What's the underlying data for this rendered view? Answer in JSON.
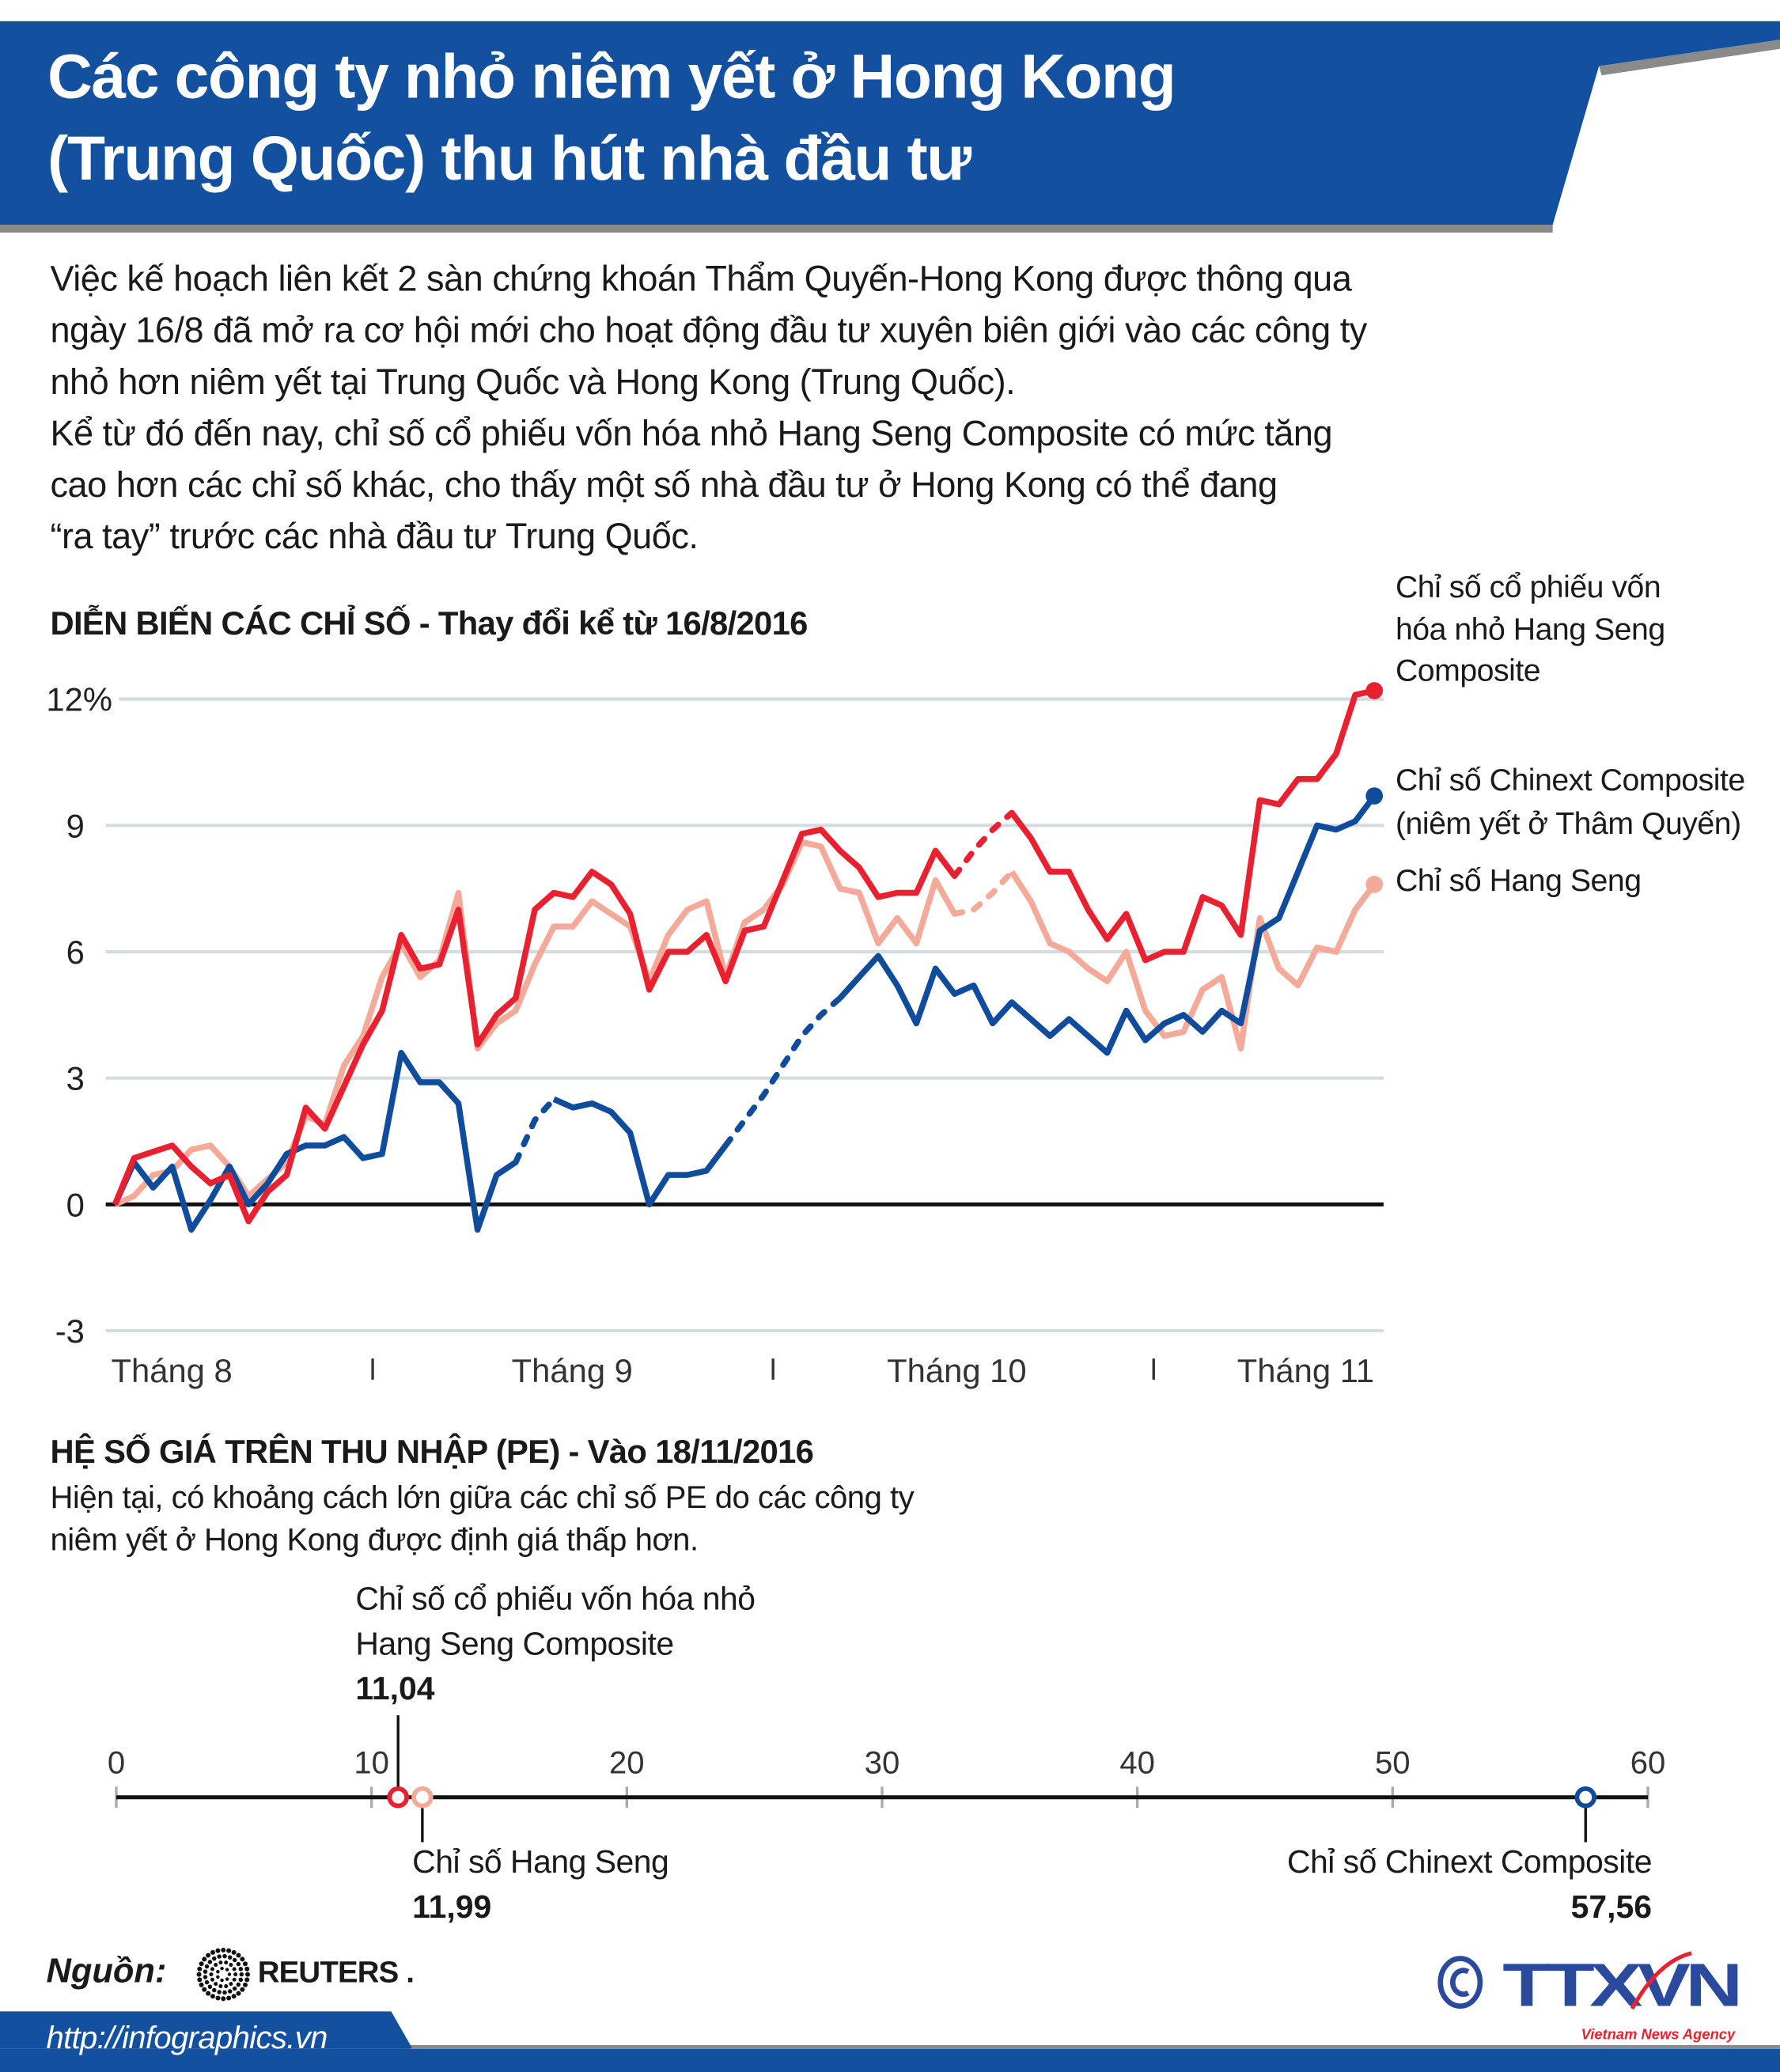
{
  "header": {
    "title_lines": [
      "Các công ty nhỏ niêm yết ở Hong Kong",
      "(Trung Quốc) thu hút nhà đầu tư"
    ]
  },
  "intro": {
    "lines": [
      "Việc  kế hoạch liên kết  2 sàn chứng khoán Thẩm Quyến-Hong Kong được thông qua",
      "ngày 16/8 đã mở ra cơ hội mới cho hoạt động đầu tư xuyên biên giới vào các công ty",
      "nhỏ hơn niêm yết tại Trung Quốc và Hong Kong (Trung Quốc).",
      "Kể từ đó đến nay, chỉ số cổ phiếu vốn hóa nhỏ Hang Seng Composite có mức tăng",
      "cao hơn các chỉ số khác, cho thấy một số nhà đầu tư ở Hong Kong có thể đang",
      "“ra tay” trước các nhà đầu tư Trung Quốc."
    ]
  },
  "colors": {
    "brand_blue": "#1351a0",
    "small_cap_red": "#e8202f",
    "chinext_blue": "#0f4c9c",
    "hang_seng_pink": "#f4a999",
    "grid": "#d3dcdf"
  },
  "chart_data": [
    {
      "type": "line",
      "title": "DIỄN BIẾN CÁC CHỈ SỐ - Thay đổi kể từ 16/8/2016",
      "xlabel": "",
      "ylabel": "",
      "ylim": [
        -3,
        12
      ],
      "yticks": [
        12,
        9,
        6,
        3,
        0,
        -3
      ],
      "ytick_labels": [
        "12%",
        "9",
        "6",
        "3",
        "0",
        "-3"
      ],
      "xtick_labels": [
        "Tháng 8",
        "Tháng 9",
        "Tháng 10",
        "Tháng 11"
      ],
      "grid": true,
      "legend_placement": "right, at line ends",
      "x": [
        "16/8",
        "17/8",
        "18/8",
        "19/8",
        "22/8",
        "23/8",
        "24/8",
        "25/8",
        "26/8",
        "29/8",
        "30/8",
        "31/8",
        "1/9",
        "2/9",
        "5/9",
        "6/9",
        "7/9",
        "8/9",
        "9/9",
        "12/9",
        "13/9",
        "14/9",
        "15/9",
        "19/9",
        "20/9",
        "21/9",
        "22/9",
        "23/9",
        "26/9",
        "27/9",
        "28/9",
        "29/9",
        "30/9",
        "3/10",
        "4/10",
        "5/10",
        "6/10",
        "7/10",
        "10/10",
        "11/10",
        "12/10",
        "13/10",
        "14/10",
        "17/10",
        "18/10",
        "19/10",
        "20/10",
        "24/10",
        "25/10",
        "26/10",
        "27/10",
        "28/10",
        "31/10",
        "1/11",
        "2/11",
        "3/11",
        "4/11",
        "7/11",
        "8/11",
        "9/11",
        "10/11",
        "11/11",
        "14/11",
        "15/11",
        "16/11",
        "17/11",
        "18/11"
      ],
      "series": [
        {
          "name": "Chỉ số cổ phiếu vốn hóa nhỏ Hang Seng Composite",
          "legend_lines": [
            "Chỉ số cổ phiếu vốn",
            "hóa nhỏ Hang Seng",
            "Composite"
          ],
          "color": "#e8202f",
          "dashed_ranges": [
            [
              "18/10",
              "24/10"
            ]
          ],
          "values": [
            0,
            1.1,
            1.25,
            1.4,
            0.9,
            0.5,
            0.7,
            -0.4,
            0.3,
            0.7,
            2.3,
            1.8,
            2.8,
            3.8,
            4.6,
            6.4,
            5.6,
            5.7,
            7.0,
            3.8,
            4.5,
            4.9,
            7.0,
            7.4,
            7.3,
            7.9,
            7.6,
            6.9,
            5.1,
            6.0,
            6.0,
            6.4,
            5.3,
            6.5,
            6.6,
            7.7,
            8.8,
            8.9,
            8.4,
            8.0,
            7.3,
            7.4,
            7.4,
            8.4,
            7.8,
            8.4,
            8.9,
            9.3,
            8.7,
            7.9,
            7.9,
            7.0,
            6.3,
            6.9,
            5.8,
            6.0,
            6.0,
            7.3,
            7.1,
            6.4,
            9.6,
            9.5,
            10.1,
            10.1,
            10.7,
            12.1,
            12.2
          ]
        },
        {
          "name": "Chỉ số Chinext Composite (niêm yết ở Thâm Quyến)",
          "legend_lines": [
            "Chỉ số Chinext Composite",
            "(niêm yết ở Thâm Quyến)"
          ],
          "color": "#0f4c9c",
          "dashed_ranges": [
            [
              "14/9",
              "19/9"
            ],
            [
              "30/9",
              "10/10"
            ]
          ],
          "values": [
            0,
            1.0,
            0.4,
            0.9,
            -0.6,
            0.1,
            0.9,
            0.0,
            0.5,
            1.2,
            1.4,
            1.4,
            1.6,
            1.1,
            1.2,
            3.6,
            2.9,
            2.9,
            2.4,
            -0.6,
            0.7,
            1.0,
            2.0,
            2.5,
            2.3,
            2.4,
            2.2,
            1.7,
            0.0,
            0.7,
            0.7,
            0.8,
            1.4,
            2.0,
            2.6,
            3.3,
            4.0,
            4.5,
            4.9,
            5.4,
            5.9,
            5.2,
            4.3,
            5.6,
            5.0,
            5.2,
            4.3,
            4.8,
            4.4,
            4.0,
            4.4,
            4.0,
            3.6,
            4.6,
            3.9,
            4.3,
            4.5,
            4.1,
            4.6,
            4.3,
            6.5,
            6.8,
            7.9,
            9.0,
            8.9,
            9.1,
            9.7
          ]
        },
        {
          "name": "Chỉ số Hang Seng",
          "legend_lines": [
            "Chỉ số Hang Seng"
          ],
          "color": "#f4a999",
          "dashed_ranges": [
            [
              "18/10",
              "24/10"
            ]
          ],
          "values": [
            0,
            0.2,
            0.7,
            0.8,
            1.3,
            1.4,
            0.9,
            0.2,
            0.6,
            1.0,
            2.1,
            1.9,
            3.3,
            4.0,
            5.4,
            6.2,
            5.4,
            5.8,
            7.4,
            3.7,
            4.3,
            4.6,
            5.7,
            6.6,
            6.6,
            7.2,
            6.9,
            6.6,
            5.3,
            6.4,
            7.0,
            7.2,
            5.4,
            6.7,
            7.0,
            7.6,
            8.6,
            8.5,
            7.5,
            7.4,
            6.2,
            6.8,
            6.2,
            7.7,
            6.9,
            7.0,
            7.4,
            7.9,
            7.2,
            6.2,
            6.0,
            5.6,
            5.3,
            6.0,
            4.6,
            4.0,
            4.1,
            5.1,
            5.4,
            3.7,
            6.8,
            5.6,
            5.2,
            6.1,
            6.0,
            7.0,
            7.6
          ]
        }
      ]
    },
    {
      "type": "scatter",
      "title": "HỆ SỐ GIÁ TRÊN THU NHẬP (PE) - Vào 18/11/2016",
      "subtitle_lines": [
        "Hiện tại, có khoảng cách lớn giữa các chỉ số PE do các công ty",
        "niêm yết ở Hong Kong được định giá thấp hơn."
      ],
      "xlim": [
        0,
        60
      ],
      "xticks": [
        0,
        10,
        20,
        30,
        40,
        50,
        60
      ],
      "xtick_labels": [
        "0",
        "10",
        "20",
        "30",
        "40",
        "50",
        "60"
      ],
      "points": [
        {
          "label_lines": [
            "Chỉ số cổ phiếu vốn hóa nhỏ",
            "Hang Seng Composite"
          ],
          "value": 11.04,
          "value_label": "11,04",
          "color": "#e8202f"
        },
        {
          "label_lines": [
            "Chỉ số Hang Seng"
          ],
          "value": 11.99,
          "value_label": "11,99",
          "color": "#f4a999"
        },
        {
          "label_lines": [
            "Chỉ số Chinext Composite"
          ],
          "value": 57.56,
          "value_label": "57,56",
          "color": "#0f4c9c"
        }
      ]
    }
  ],
  "footer": {
    "source_label": "Nguồn:",
    "source_name": "REUTERS .",
    "url": "http://infographics.vn",
    "agency_logo": "TTXVN",
    "agency_tagline": "Vietnam News Agency",
    "copyright_icon": "copyright-icon"
  }
}
